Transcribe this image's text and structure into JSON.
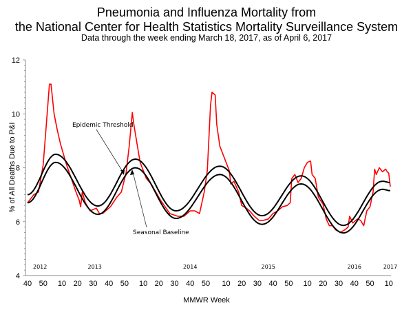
{
  "chart_data": {
    "type": "line",
    "title": "Pneumonia and Influenza Mortality from",
    "title_line2": "the National Center for Health Statistics Mortality Surveillance System",
    "subtitle": "Data through the week ending March 18, 2017, as of April 6, 2017",
    "xlabel": "MMWR Week",
    "ylabel": "% of All Deaths Due to P&I",
    "ylim": [
      4,
      12
    ],
    "yticks": [
      4,
      6,
      8,
      10,
      12
    ],
    "xlim": [
      "2012-40",
      "2017-11"
    ],
    "xticks": [
      {
        "week": "2012-40",
        "label": "40"
      },
      {
        "week": "2012-50",
        "label": "50"
      },
      {
        "week": "2013-10",
        "label": "10"
      },
      {
        "week": "2013-20",
        "label": "20"
      },
      {
        "week": "2013-30",
        "label": "30"
      },
      {
        "week": "2013-40",
        "label": "40"
      },
      {
        "week": "2013-50",
        "label": "50"
      },
      {
        "week": "2014-10",
        "label": "10"
      },
      {
        "week": "2014-20",
        "label": "20"
      },
      {
        "week": "2014-30",
        "label": "30"
      },
      {
        "week": "2014-40",
        "label": "40"
      },
      {
        "week": "2014-50",
        "label": "50"
      },
      {
        "week": "2015-10",
        "label": "10"
      },
      {
        "week": "2015-20",
        "label": "20"
      },
      {
        "week": "2015-30",
        "label": "30"
      },
      {
        "week": "2015-40",
        "label": "40"
      },
      {
        "week": "2015-50",
        "label": "50"
      },
      {
        "week": "2016-10",
        "label": "10"
      },
      {
        "week": "2016-20",
        "label": "20"
      },
      {
        "week": "2016-30",
        "label": "30"
      },
      {
        "week": "2016-40",
        "label": "40"
      },
      {
        "week": "2016-50",
        "label": "50"
      },
      {
        "week": "2017-10",
        "label": "10"
      }
    ],
    "year_labels": [
      {
        "week": "2012-48",
        "label": "2012"
      },
      {
        "week": "2013-31",
        "label": "2013"
      },
      {
        "week": "2014-40",
        "label": "2014"
      },
      {
        "week": "2015-37",
        "label": "2015"
      },
      {
        "week": "2016-40",
        "label": "2016"
      },
      {
        "week": "2017-11",
        "label": "2017"
      }
    ],
    "grid": false,
    "legend": "none",
    "series": [
      {
        "key": "observed",
        "color": "#ff0000",
        "points": [
          [
            "2012-40",
            6.7
          ],
          [
            "2012-44",
            7.0
          ],
          [
            "2012-47",
            7.1
          ],
          [
            "2012-50",
            8.1
          ],
          [
            "2012-52",
            9.6
          ],
          [
            "2013-02",
            11.1
          ],
          [
            "2013-03",
            11.1
          ],
          [
            "2013-05",
            10.0
          ],
          [
            "2013-07",
            9.4
          ],
          [
            "2013-09",
            8.9
          ],
          [
            "2013-11",
            8.5
          ],
          [
            "2013-13",
            8.1
          ],
          [
            "2013-16",
            7.6
          ],
          [
            "2013-19",
            7.1
          ],
          [
            "2013-21",
            6.8
          ],
          [
            "2013-22",
            6.55
          ],
          [
            "2013-23",
            7.1
          ],
          [
            "2013-25",
            6.7
          ],
          [
            "2013-28",
            6.4
          ],
          [
            "2013-32",
            6.5
          ],
          [
            "2013-34",
            6.3
          ],
          [
            "2013-36",
            6.3
          ],
          [
            "2013-41",
            6.55
          ],
          [
            "2013-45",
            6.9
          ],
          [
            "2013-48",
            7.1
          ],
          [
            "2013-51",
            7.8
          ],
          [
            "2014-01",
            8.8
          ],
          [
            "2014-03",
            10.05
          ],
          [
            "2014-04",
            9.6
          ],
          [
            "2014-06",
            8.9
          ],
          [
            "2014-08",
            8.2
          ],
          [
            "2014-10",
            7.9
          ],
          [
            "2014-12",
            7.6
          ],
          [
            "2014-15",
            7.4
          ],
          [
            "2014-18",
            7.1
          ],
          [
            "2014-21",
            6.8
          ],
          [
            "2014-24",
            6.55
          ],
          [
            "2014-27",
            6.3
          ],
          [
            "2014-32",
            6.2
          ],
          [
            "2014-36",
            6.2
          ],
          [
            "2014-40",
            6.4
          ],
          [
            "2014-43",
            6.4
          ],
          [
            "2014-46",
            6.3
          ],
          [
            "2014-49",
            7.1
          ],
          [
            "2014-51",
            7.9
          ],
          [
            "2014-53",
            10.3
          ],
          [
            "2015-01",
            10.8
          ],
          [
            "2015-03",
            10.7
          ],
          [
            "2015-04",
            9.6
          ],
          [
            "2015-06",
            8.8
          ],
          [
            "2015-08",
            8.5
          ],
          [
            "2015-09",
            8.35
          ],
          [
            "2015-12",
            7.9
          ],
          [
            "2015-13",
            7.4
          ],
          [
            "2015-15",
            7.5
          ],
          [
            "2015-18",
            7.1
          ],
          [
            "2015-20",
            6.6
          ],
          [
            "2015-23",
            6.5
          ],
          [
            "2015-25",
            6.4
          ],
          [
            "2015-28",
            6.2
          ],
          [
            "2015-31",
            6.05
          ],
          [
            "2015-34",
            6.05
          ],
          [
            "2015-37",
            6.1
          ],
          [
            "2015-40",
            6.3
          ],
          [
            "2015-43",
            6.4
          ],
          [
            "2015-46",
            6.55
          ],
          [
            "2015-49",
            6.6
          ],
          [
            "2015-51",
            6.7
          ],
          [
            "2015-52",
            7.6
          ],
          [
            "2016-02",
            7.75
          ],
          [
            "2016-04",
            7.45
          ],
          [
            "2016-06",
            7.6
          ],
          [
            "2016-08",
            8.0
          ],
          [
            "2016-10",
            8.2
          ],
          [
            "2016-12",
            8.25
          ],
          [
            "2016-13",
            7.75
          ],
          [
            "2016-15",
            7.6
          ],
          [
            "2016-17",
            6.9
          ],
          [
            "2016-20",
            6.65
          ],
          [
            "2016-22",
            6.1
          ],
          [
            "2016-24",
            5.85
          ],
          [
            "2016-26",
            5.85
          ],
          [
            "2016-28",
            5.7
          ],
          [
            "2016-31",
            5.6
          ],
          [
            "2016-34",
            5.7
          ],
          [
            "2016-36",
            5.8
          ],
          [
            "2016-37",
            6.2
          ],
          [
            "2016-39",
            5.95
          ],
          [
            "2016-42",
            6.1
          ],
          [
            "2016-44",
            6.05
          ],
          [
            "2016-46",
            5.85
          ],
          [
            "2016-48",
            6.4
          ],
          [
            "2016-50",
            6.55
          ],
          [
            "2016-52",
            7.1
          ],
          [
            "2017-01",
            7.95
          ],
          [
            "2017-02",
            7.75
          ],
          [
            "2017-04",
            8.0
          ],
          [
            "2017-06",
            7.85
          ],
          [
            "2017-08",
            7.95
          ],
          [
            "2017-09",
            7.85
          ],
          [
            "2017-10",
            7.8
          ],
          [
            "2017-11",
            7.3
          ]
        ]
      },
      {
        "key": "threshold",
        "color": "#000000",
        "points": [
          [
            "2012-40",
            7.0
          ],
          [
            "2013-06",
            8.5
          ],
          [
            "2013-33",
            6.58
          ],
          [
            "2014-05",
            8.32
          ],
          [
            "2014-31",
            6.4
          ],
          [
            "2015-06",
            8.06
          ],
          [
            "2015-33",
            6.22
          ],
          [
            "2016-06",
            7.7
          ],
          [
            "2016-33",
            5.86
          ],
          [
            "2017-06",
            7.5
          ],
          [
            "2017-11",
            7.45
          ]
        ]
      },
      {
        "key": "baseline",
        "color": "#000000",
        "points": [
          [
            "2012-40",
            6.7
          ],
          [
            "2013-06",
            8.2
          ],
          [
            "2013-33",
            6.27
          ],
          [
            "2014-05",
            8.0
          ],
          [
            "2014-31",
            6.12
          ],
          [
            "2015-06",
            7.75
          ],
          [
            "2015-33",
            5.9
          ],
          [
            "2016-06",
            7.4
          ],
          [
            "2016-33",
            5.58
          ],
          [
            "2017-06",
            7.2
          ],
          [
            "2017-11",
            7.15
          ]
        ]
      }
    ],
    "annotations": {
      "threshold_label": "Epidemic Threshold",
      "baseline_label": "Seasonal Baseline"
    }
  }
}
